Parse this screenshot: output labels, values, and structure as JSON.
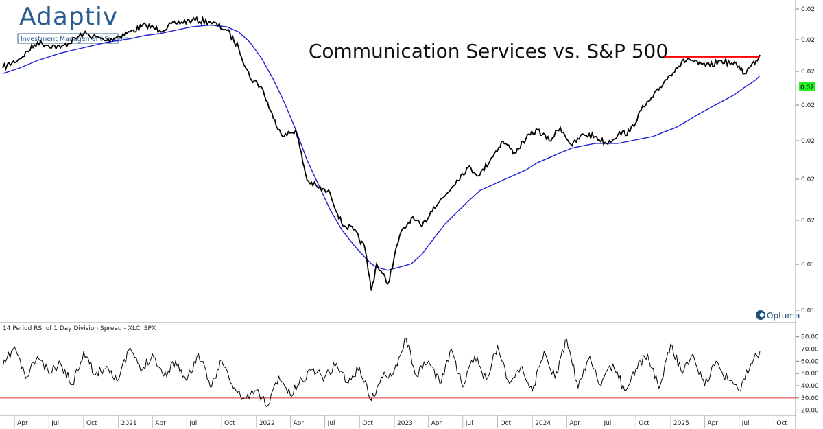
{
  "logo": {
    "name": "Adaptiv",
    "tagline": "Investment Management System"
  },
  "optuma": {
    "name": "Optuma"
  },
  "colors": {
    "price_line": "#000000",
    "moving_average": "#1f1fd6",
    "resistance": "#ff0000",
    "rsi_bands": "#e03030",
    "last_value_tag": "#22ee22"
  },
  "chart_data": [
    {
      "type": "line",
      "title": "Communication Services vs. S&P 500",
      "y_tick_labels": [
        "0.02",
        "0.02",
        "0.02",
        "0.02",
        "0.02",
        "0.02",
        "0.02",
        "0.01",
        "0.01",
        "0.01"
      ],
      "last_value_label": "0.02",
      "y_scale": "log",
      "ylim": [
        0.0098,
        0.0228
      ],
      "x": [
        "2020-03-01",
        "2020-04-15",
        "2020-06-01",
        "2020-08-01",
        "2020-10-01",
        "2020-12-01",
        "2021-02-01",
        "2021-03-15",
        "2021-04-20",
        "2021-06-01",
        "2021-07-15",
        "2021-09-01",
        "2021-10-15",
        "2021-11-15",
        "2021-12-15",
        "2022-01-15",
        "2022-02-15",
        "2022-03-15",
        "2022-04-15",
        "2022-05-15",
        "2022-06-15",
        "2022-07-15",
        "2022-08-15",
        "2022-09-15",
        "2022-10-15",
        "2022-11-01",
        "2022-11-15",
        "2022-12-15",
        "2023-01-15",
        "2023-02-15",
        "2023-03-15",
        "2023-04-15",
        "2023-05-15",
        "2023-06-15",
        "2023-07-15",
        "2023-08-15",
        "2023-09-15",
        "2023-10-15",
        "2023-11-15",
        "2023-12-15",
        "2024-01-15",
        "2024-02-15",
        "2024-03-15",
        "2024-04-15",
        "2024-05-15",
        "2024-06-15",
        "2024-07-15",
        "2024-08-15",
        "2024-09-15",
        "2024-10-15",
        "2024-11-15",
        "2024-12-15",
        "2025-01-15",
        "2025-02-15",
        "2025-03-15",
        "2025-04-15",
        "2025-05-15",
        "2025-06-15",
        "2025-07-01",
        "2025-07-15",
        "2025-08-01",
        "2025-08-15",
        "2025-08-25"
      ],
      "series": [
        {
          "values": [
            0.0192,
            0.0197,
            0.0206,
            0.0203,
            0.0211,
            0.0207,
            0.0212,
            0.0216,
            0.0213,
            0.0217,
            0.0219,
            0.0218,
            0.0213,
            0.0203,
            0.0187,
            0.0182,
            0.0167,
            0.0159,
            0.0162,
            0.0141,
            0.0138,
            0.0136,
            0.0125,
            0.0123,
            0.0117,
            0.0104,
            0.0112,
            0.0106,
            0.0121,
            0.0127,
            0.0124,
            0.0131,
            0.0135,
            0.0141,
            0.0146,
            0.0143,
            0.015,
            0.0157,
            0.0152,
            0.0158,
            0.0162,
            0.0157,
            0.0163,
            0.0155,
            0.016,
            0.0159,
            0.0156,
            0.016,
            0.0161,
            0.0171,
            0.0177,
            0.0185,
            0.0192,
            0.0197,
            0.0194,
            0.0193,
            0.0196,
            0.0194,
            0.0193,
            0.0189,
            0.0193,
            0.0196,
            0.0199
          ]
        },
        {
          "values": [
            0.0189,
            0.0192,
            0.0196,
            0.02,
            0.0203,
            0.0206,
            0.0208,
            0.021,
            0.0211,
            0.0213,
            0.0215,
            0.0216,
            0.0215,
            0.0212,
            0.0206,
            0.0197,
            0.0186,
            0.0175,
            0.0162,
            0.0149,
            0.0139,
            0.013,
            0.0123,
            0.0118,
            0.0114,
            0.0112,
            0.0111,
            0.011,
            0.0111,
            0.0112,
            0.0115,
            0.012,
            0.0125,
            0.0129,
            0.0133,
            0.0137,
            0.0139,
            0.0141,
            0.0143,
            0.0145,
            0.0148,
            0.015,
            0.0152,
            0.0154,
            0.0155,
            0.0156,
            0.0156,
            0.0156,
            0.0157,
            0.0158,
            0.0159,
            0.0161,
            0.0163,
            0.0166,
            0.0169,
            0.0172,
            0.0175,
            0.0178,
            0.018,
            0.0182,
            0.0184,
            0.0186,
            0.0188
          ]
        }
      ],
      "annotations": [
        {
          "type": "horizontal_line",
          "value": 0.0198,
          "x_start": "2024-12-15",
          "x_end": "2025-08-25"
        }
      ]
    },
    {
      "type": "line",
      "title": "14 Period RSI of 1 Day Division Spread - XLC, SPX",
      "y_tick_labels": [
        "80.00",
        "70.00",
        "60.00",
        "50.00",
        "40.00",
        "30.00",
        "20.00"
      ],
      "ylim": [
        17,
        86
      ],
      "bands": [
        70,
        30
      ],
      "x_tick_labels": [
        "Apr",
        "Jul",
        "Oct",
        "2021",
        "Apr",
        "Jul",
        "Oct",
        "2022",
        "Apr",
        "Jul",
        "Oct",
        "2023",
        "Apr",
        "Jul",
        "Oct",
        "2024",
        "Apr",
        "Jul",
        "Oct",
        "2025",
        "Apr",
        "Jul",
        "Oct"
      ],
      "x": [
        "2020-03-01",
        "2020-04-01",
        "2020-05-01",
        "2020-06-01",
        "2020-07-01",
        "2020-08-01",
        "2020-09-01",
        "2020-10-01",
        "2020-11-01",
        "2020-12-01",
        "2021-01-01",
        "2021-02-01",
        "2021-03-01",
        "2021-04-01",
        "2021-05-01",
        "2021-06-01",
        "2021-07-01",
        "2021-08-01",
        "2021-09-01",
        "2021-10-01",
        "2021-11-01",
        "2021-12-01",
        "2022-01-01",
        "2022-02-01",
        "2022-03-01",
        "2022-04-01",
        "2022-05-01",
        "2022-06-01",
        "2022-07-01",
        "2022-08-01",
        "2022-09-01",
        "2022-10-01",
        "2022-11-01",
        "2022-12-01",
        "2023-01-01",
        "2023-02-01",
        "2023-03-01",
        "2023-04-01",
        "2023-05-01",
        "2023-06-01",
        "2023-07-01",
        "2023-08-01",
        "2023-09-01",
        "2023-10-01",
        "2023-11-01",
        "2023-12-01",
        "2024-01-01",
        "2024-02-01",
        "2024-03-01",
        "2024-04-01",
        "2024-05-01",
        "2024-06-01",
        "2024-07-01",
        "2024-08-01",
        "2024-09-01",
        "2024-10-01",
        "2024-11-01",
        "2024-12-01",
        "2025-01-01",
        "2025-02-01",
        "2025-03-01",
        "2025-04-01",
        "2025-05-01",
        "2025-06-01",
        "2025-07-01",
        "2025-08-01",
        "2025-08-25"
      ],
      "series": [
        {
          "values": [
            55,
            72,
            46,
            64,
            50,
            58,
            41,
            68,
            49,
            56,
            45,
            71,
            52,
            66,
            48,
            60,
            44,
            66,
            39,
            61,
            38,
            29,
            36,
            24,
            48,
            32,
            45,
            54,
            47,
            58,
            42,
            55,
            28,
            47,
            53,
            79,
            48,
            60,
            42,
            70,
            39,
            64,
            45,
            73,
            42,
            55,
            36,
            68,
            46,
            78,
            38,
            64,
            40,
            58,
            36,
            54,
            66,
            38,
            74,
            50,
            66,
            40,
            60,
            45,
            36,
            58,
            68
          ]
        }
      ]
    }
  ]
}
